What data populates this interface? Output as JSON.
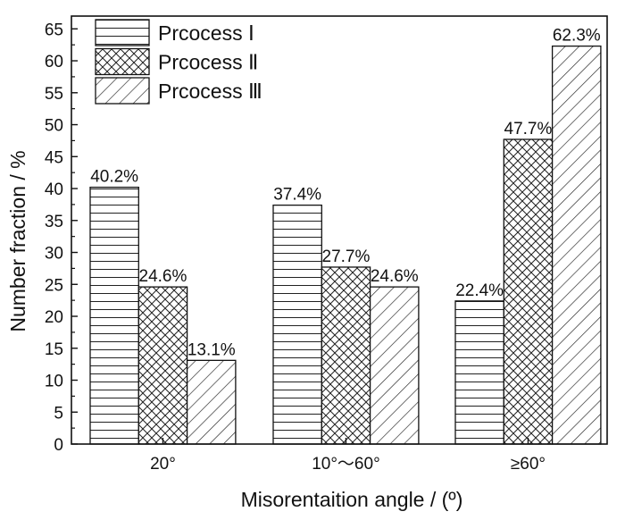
{
  "chart_data": {
    "type": "bar",
    "categories": [
      "20°",
      "10°～60°",
      "≥60°"
    ],
    "series": [
      {
        "name": "Prcocess Ⅰ",
        "pattern": "horizontal",
        "values": [
          40.2,
          37.4,
          22.4
        ],
        "labels": [
          "40.2%",
          "37.4%",
          "22.4%"
        ]
      },
      {
        "name": "Prcocess Ⅱ",
        "pattern": "crosshatch",
        "values": [
          24.6,
          27.7,
          47.7
        ],
        "labels": [
          "24.6%",
          "27.7%",
          "47.7%"
        ]
      },
      {
        "name": "Prcocess Ⅲ",
        "pattern": "diagonal",
        "values": [
          13.1,
          24.6,
          62.3
        ],
        "labels": [
          "13.1%",
          "24.6%",
          "62.3%"
        ]
      }
    ],
    "xlabel": "Misorentaition angle / (º)",
    "ylabel": "Number fraction / %",
    "ylim": [
      0,
      67
    ],
    "yticks": [
      0,
      5,
      10,
      15,
      20,
      25,
      30,
      35,
      40,
      45,
      50,
      55,
      60,
      65
    ],
    "legend_position": "top-left",
    "grid": false,
    "colors": {
      "stroke": "#111111",
      "background": "#ffffff"
    }
  }
}
